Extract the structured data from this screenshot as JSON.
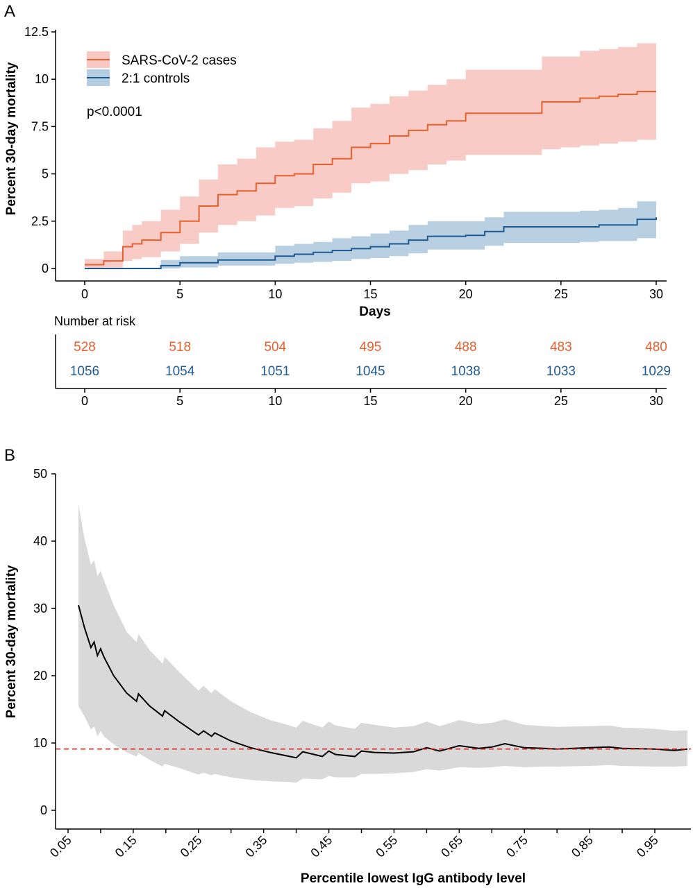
{
  "colors": {
    "cases_line": "#e8602c",
    "cases_band": "#f9c8c4",
    "controls_line": "#1d5a94",
    "controls_band": "#b5cde0",
    "risk_cases_text": "#e8602c",
    "risk_controls_text": "#1d5a94",
    "curve_b": "#000000",
    "band_b": "#d9d9d9",
    "reference_line": "#e0241c"
  },
  "chart_data": [
    {
      "panel": "A",
      "type": "line",
      "ylabel": "Percent 30-day mortality",
      "xlabel": "Days",
      "xlim": [
        0,
        30
      ],
      "ylim": [
        0,
        12.5
      ],
      "x_ticks": [
        "0",
        "5",
        "10",
        "15",
        "20",
        "25",
        "30"
      ],
      "y_ticks": [
        "0",
        "2.5",
        "5",
        "7.5",
        "10",
        "12.5"
      ],
      "annotation": "p<0.0001",
      "legend_position": "top-left",
      "series": [
        {
          "name": "SARS-CoV-2 cases",
          "step": true,
          "x": [
            0,
            1,
            2,
            2.5,
            3,
            4,
            5,
            6,
            7,
            8,
            9,
            10,
            11,
            12,
            13,
            14,
            15,
            16,
            17,
            18,
            19,
            20,
            21,
            22,
            23,
            24,
            25,
            26,
            27,
            28,
            29,
            30
          ],
          "y": [
            0.2,
            0.4,
            1.15,
            1.3,
            1.5,
            1.9,
            2.5,
            3.3,
            3.9,
            4.1,
            4.5,
            4.9,
            5.0,
            5.5,
            5.8,
            6.4,
            6.6,
            7.0,
            7.3,
            7.6,
            7.8,
            8.2,
            8.2,
            8.2,
            8.2,
            8.8,
            8.8,
            9.0,
            9.1,
            9.2,
            9.35,
            9.35
          ],
          "lower": [
            0.0,
            0.05,
            0.4,
            0.5,
            0.6,
            0.9,
            1.3,
            1.9,
            2.3,
            2.5,
            2.8,
            3.2,
            3.3,
            3.7,
            4.0,
            4.5,
            4.6,
            5.0,
            5.2,
            5.5,
            5.7,
            6.0,
            6.0,
            6.0,
            6.0,
            6.3,
            6.4,
            6.5,
            6.6,
            6.7,
            6.8,
            6.8
          ],
          "upper": [
            0.5,
            0.9,
            2.0,
            2.3,
            2.5,
            3.1,
            3.8,
            4.7,
            5.5,
            5.8,
            6.4,
            6.7,
            6.8,
            7.4,
            7.8,
            8.5,
            8.7,
            9.1,
            9.4,
            9.7,
            10.0,
            10.5,
            10.5,
            10.5,
            10.5,
            11.2,
            11.2,
            11.5,
            11.6,
            11.7,
            11.9,
            11.9
          ]
        },
        {
          "name": "2:1 controls",
          "step": true,
          "x": [
            0,
            4,
            5,
            7,
            10,
            11,
            12,
            13,
            14,
            15,
            16,
            17,
            18,
            20,
            21,
            22,
            23,
            24,
            25,
            26,
            27,
            28,
            29,
            30
          ],
          "y": [
            0.0,
            0.15,
            0.3,
            0.45,
            0.65,
            0.75,
            0.85,
            0.95,
            1.05,
            1.15,
            1.3,
            1.5,
            1.7,
            1.75,
            1.95,
            2.2,
            2.2,
            2.2,
            2.2,
            2.2,
            2.3,
            2.3,
            2.6,
            2.7
          ],
          "lower": [
            0.0,
            0.0,
            0.05,
            0.15,
            0.25,
            0.3,
            0.35,
            0.4,
            0.5,
            0.55,
            0.65,
            0.8,
            1.0,
            1.0,
            1.2,
            1.35,
            1.35,
            1.35,
            1.35,
            1.4,
            1.45,
            1.45,
            1.6,
            1.7
          ],
          "upper": [
            0.0,
            0.45,
            0.65,
            0.85,
            1.2,
            1.3,
            1.4,
            1.6,
            1.7,
            1.85,
            2.0,
            2.3,
            2.5,
            2.5,
            2.7,
            3.0,
            3.0,
            3.0,
            3.0,
            3.05,
            3.1,
            3.2,
            3.55,
            3.6
          ]
        }
      ]
    },
    {
      "panel": "B",
      "type": "line",
      "ylabel": "Percent 30-day mortality",
      "xlabel": "Percentile lowest IgG antibody level",
      "xlim": [
        0.03,
        1.0
      ],
      "ylim": [
        0,
        50
      ],
      "x_ticks": [
        "0.05",
        "0.15",
        "0.25",
        "0.35",
        "0.45",
        "0.55",
        "0.65",
        "0.75",
        "0.85",
        "0.95"
      ],
      "y_ticks": [
        "0",
        "10",
        "20",
        "30",
        "40",
        "50"
      ],
      "reference_line_y": 9.1,
      "series": [
        {
          "x": [
            0.066,
            0.075,
            0.085,
            0.09,
            0.095,
            0.1,
            0.105,
            0.12,
            0.14,
            0.155,
            0.158,
            0.175,
            0.195,
            0.198,
            0.22,
            0.25,
            0.258,
            0.27,
            0.275,
            0.3,
            0.33,
            0.36,
            0.39,
            0.4,
            0.41,
            0.44,
            0.45,
            0.46,
            0.49,
            0.5,
            0.52,
            0.55,
            0.58,
            0.6,
            0.62,
            0.65,
            0.68,
            0.7,
            0.72,
            0.75,
            0.78,
            0.8,
            0.85,
            0.88,
            0.9,
            0.95,
            0.98,
            1.0
          ],
          "y": [
            30.5,
            27.2,
            24.2,
            25.0,
            23.0,
            24.0,
            22.8,
            20.0,
            17.4,
            16.2,
            17.3,
            15.5,
            14.0,
            14.8,
            13.2,
            11.2,
            11.8,
            11.0,
            11.5,
            10.3,
            9.3,
            8.6,
            8.0,
            7.8,
            8.7,
            8.0,
            8.8,
            8.3,
            8.0,
            8.8,
            8.6,
            8.5,
            8.7,
            9.3,
            8.8,
            9.6,
            9.2,
            9.4,
            9.9,
            9.3,
            9.2,
            9.1,
            9.3,
            9.4,
            9.2,
            9.1,
            8.9,
            9.1
          ],
          "lower": [
            15.5,
            14.0,
            12.0,
            12.5,
            11.0,
            11.8,
            11.0,
            9.8,
            8.6,
            8.0,
            8.5,
            7.5,
            6.5,
            6.9,
            6.3,
            5.3,
            5.6,
            5.2,
            5.4,
            4.9,
            4.5,
            4.3,
            4.2,
            4.1,
            4.7,
            4.6,
            5.1,
            4.9,
            4.9,
            5.4,
            5.4,
            5.5,
            5.7,
            6.1,
            5.9,
            6.4,
            6.3,
            6.4,
            6.6,
            6.4,
            6.5,
            6.5,
            6.6,
            6.7,
            6.6,
            6.5,
            6.5,
            6.6
          ],
          "upper": [
            45.5,
            40.5,
            36.5,
            37.2,
            34.8,
            35.6,
            34.2,
            30.5,
            26.5,
            25.0,
            26.2,
            23.8,
            21.8,
            22.8,
            20.6,
            17.8,
            18.5,
            17.4,
            18.0,
            16.2,
            14.6,
            13.4,
            12.6,
            12.3,
            13.3,
            12.3,
            13.2,
            12.6,
            12.1,
            13.0,
            12.7,
            12.3,
            12.5,
            13.2,
            12.5,
            13.4,
            12.8,
            13.0,
            13.5,
            12.7,
            12.5,
            12.4,
            12.5,
            12.6,
            12.3,
            12.1,
            11.8,
            11.9
          ]
        }
      ]
    }
  ],
  "panelA": {
    "letter": "A",
    "legend": {
      "cases": "SARS-CoV-2 cases",
      "controls": "2:1 controls"
    },
    "p_value": "p<0.0001",
    "risk_table": {
      "title": "Number at risk",
      "days": [
        0,
        5,
        10,
        15,
        20,
        25,
        30
      ],
      "cases": [
        "528",
        "518",
        "504",
        "495",
        "488",
        "483",
        "480"
      ],
      "controls": [
        "1056",
        "1054",
        "1051",
        "1045",
        "1038",
        "1033",
        "1029"
      ]
    }
  },
  "panelB": {
    "letter": "B"
  }
}
